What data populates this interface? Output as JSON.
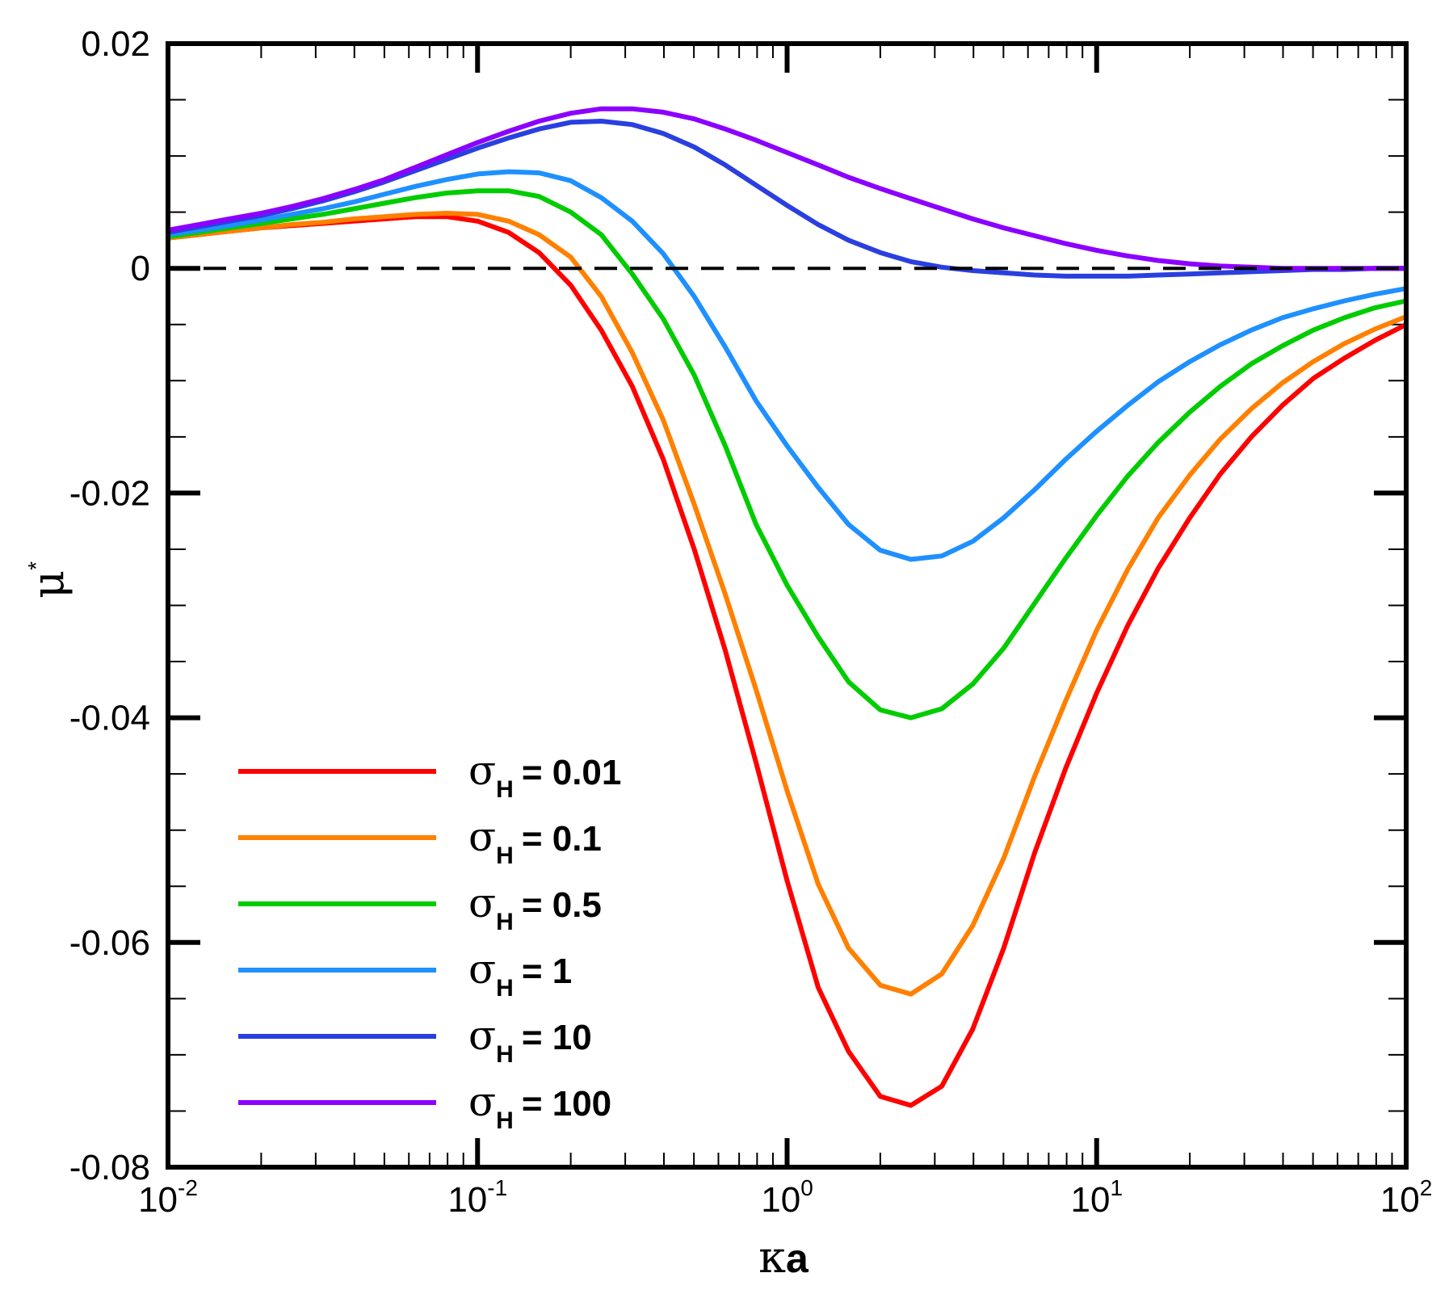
{
  "chart_data": {
    "type": "line",
    "xscale": "log",
    "xlim": [
      0.01,
      100
    ],
    "ylim": [
      -0.08,
      0.02
    ],
    "xlabel": {
      "symbol": "κ",
      "text": "a"
    },
    "ylabel": {
      "symbol": "μ",
      "superscript": "*"
    },
    "x_ticks": [
      {
        "base": "10",
        "exp": "-2"
      },
      {
        "base": "10",
        "exp": "-1"
      },
      {
        "base": "10",
        "exp": "0"
      },
      {
        "base": "10",
        "exp": "1"
      },
      {
        "base": "10",
        "exp": "2"
      }
    ],
    "y_ticks": [
      "0.02",
      "0",
      "-0.02",
      "-0.04",
      "-0.06",
      "-0.08"
    ],
    "y_tick_values": [
      0.02,
      0,
      -0.02,
      -0.04,
      -0.06,
      -0.08
    ],
    "reference_line": {
      "y": 0,
      "style": "dashed",
      "color": "#000000"
    },
    "legend_position": "bottom-left",
    "x": [
      0.01,
      0.0126,
      0.0158,
      0.02,
      0.0251,
      0.0316,
      0.0398,
      0.0501,
      0.0631,
      0.0794,
      0.1,
      0.126,
      0.158,
      0.2,
      0.251,
      0.316,
      0.398,
      0.501,
      0.631,
      0.794,
      1,
      1.26,
      1.58,
      2,
      2.51,
      3.16,
      3.98,
      5.01,
      6.31,
      7.94,
      10,
      12.6,
      15.8,
      20,
      25.1,
      31.6,
      39.8,
      50.1,
      63.1,
      79.4,
      100
    ],
    "series": [
      {
        "name": "0.01",
        "label": "= 0.01",
        "color": "#ff0000",
        "values": [
          0.0027,
          0.003,
          0.0033,
          0.0036,
          0.0038,
          0.004,
          0.0042,
          0.0044,
          0.0046,
          0.0046,
          0.0042,
          0.0032,
          0.0014,
          -0.0015,
          -0.0055,
          -0.0105,
          -0.017,
          -0.025,
          -0.034,
          -0.044,
          -0.0545,
          -0.064,
          -0.0697,
          -0.0737,
          -0.0745,
          -0.0728,
          -0.0677,
          -0.0605,
          -0.052,
          -0.0445,
          -0.0378,
          -0.0318,
          -0.0267,
          -0.0222,
          -0.0183,
          -0.015,
          -0.0122,
          -0.0098,
          -0.008,
          -0.0064,
          -0.005
        ]
      },
      {
        "name": "0.1",
        "label": "= 0.1",
        "color": "#ff8000",
        "values": [
          0.0027,
          0.003,
          0.0033,
          0.0036,
          0.0039,
          0.0041,
          0.0044,
          0.0046,
          0.0048,
          0.0049,
          0.0048,
          0.0042,
          0.003,
          0.001,
          -0.0025,
          -0.0075,
          -0.0135,
          -0.021,
          -0.029,
          -0.0375,
          -0.0465,
          -0.0548,
          -0.0605,
          -0.0638,
          -0.0646,
          -0.0628,
          -0.0585,
          -0.0525,
          -0.0452,
          -0.0385,
          -0.0322,
          -0.0268,
          -0.0222,
          -0.0184,
          -0.0152,
          -0.0125,
          -0.0102,
          -0.0083,
          -0.0067,
          -0.0054,
          -0.0043
        ]
      },
      {
        "name": "0.5",
        "label": "= 0.5",
        "color": "#00cc00",
        "values": [
          0.0028,
          0.0032,
          0.0036,
          0.004,
          0.0044,
          0.0048,
          0.0053,
          0.0058,
          0.0063,
          0.0067,
          0.0069,
          0.0069,
          0.0064,
          0.005,
          0.003,
          -0.0005,
          -0.0045,
          -0.0095,
          -0.0158,
          -0.0228,
          -0.0282,
          -0.0328,
          -0.0368,
          -0.0393,
          -0.04,
          -0.0392,
          -0.037,
          -0.0338,
          -0.0298,
          -0.0258,
          -0.022,
          -0.0185,
          -0.0155,
          -0.0128,
          -0.0105,
          -0.0085,
          -0.0069,
          -0.0055,
          -0.0044,
          -0.0035,
          -0.0029
        ]
      },
      {
        "name": "1",
        "label": "= 1",
        "color": "#1e90ff",
        "values": [
          0.003,
          0.0034,
          0.0038,
          0.0043,
          0.0048,
          0.0053,
          0.0059,
          0.0066,
          0.0073,
          0.0079,
          0.0084,
          0.0086,
          0.0085,
          0.0078,
          0.0063,
          0.0042,
          0.0013,
          -0.0025,
          -0.007,
          -0.0118,
          -0.0158,
          -0.0195,
          -0.0228,
          -0.0251,
          -0.0259,
          -0.0256,
          -0.0243,
          -0.0222,
          -0.0197,
          -0.017,
          -0.0145,
          -0.0122,
          -0.0101,
          -0.0083,
          -0.0068,
          -0.0055,
          -0.0044,
          -0.0036,
          -0.0029,
          -0.0023,
          -0.0018
        ]
      },
      {
        "name": "10",
        "label": "= 10",
        "color": "#2a3fe0",
        "values": [
          0.0032,
          0.0037,
          0.0042,
          0.0047,
          0.0053,
          0.006,
          0.0068,
          0.0077,
          0.0087,
          0.0097,
          0.0107,
          0.0116,
          0.0124,
          0.013,
          0.0131,
          0.0128,
          0.012,
          0.0108,
          0.0092,
          0.0074,
          0.0056,
          0.0039,
          0.0025,
          0.0014,
          0.0006,
          0.0001,
          -0.0002,
          -0.0004,
          -0.0006,
          -0.0007,
          -0.0007,
          -0.0007,
          -0.0006,
          -0.0005,
          -0.0004,
          -0.0003,
          -0.0002,
          -0.0001,
          -0.0001,
          0,
          0
        ]
      },
      {
        "name": "100",
        "label": "= 100",
        "color": "#8b00ff",
        "values": [
          0.0034,
          0.0039,
          0.0044,
          0.0049,
          0.0055,
          0.0062,
          0.007,
          0.0079,
          0.009,
          0.0101,
          0.0112,
          0.0122,
          0.0131,
          0.0138,
          0.0142,
          0.0142,
          0.0139,
          0.0133,
          0.0124,
          0.0114,
          0.0103,
          0.0092,
          0.0081,
          0.0071,
          0.0062,
          0.0053,
          0.0044,
          0.0036,
          0.0029,
          0.0022,
          0.0016,
          0.0011,
          0.0007,
          0.0004,
          0.0002,
          0.0001,
          0,
          0,
          0,
          0,
          0
        ]
      }
    ],
    "legend_symbol": "σ",
    "legend_subscript": "H"
  }
}
